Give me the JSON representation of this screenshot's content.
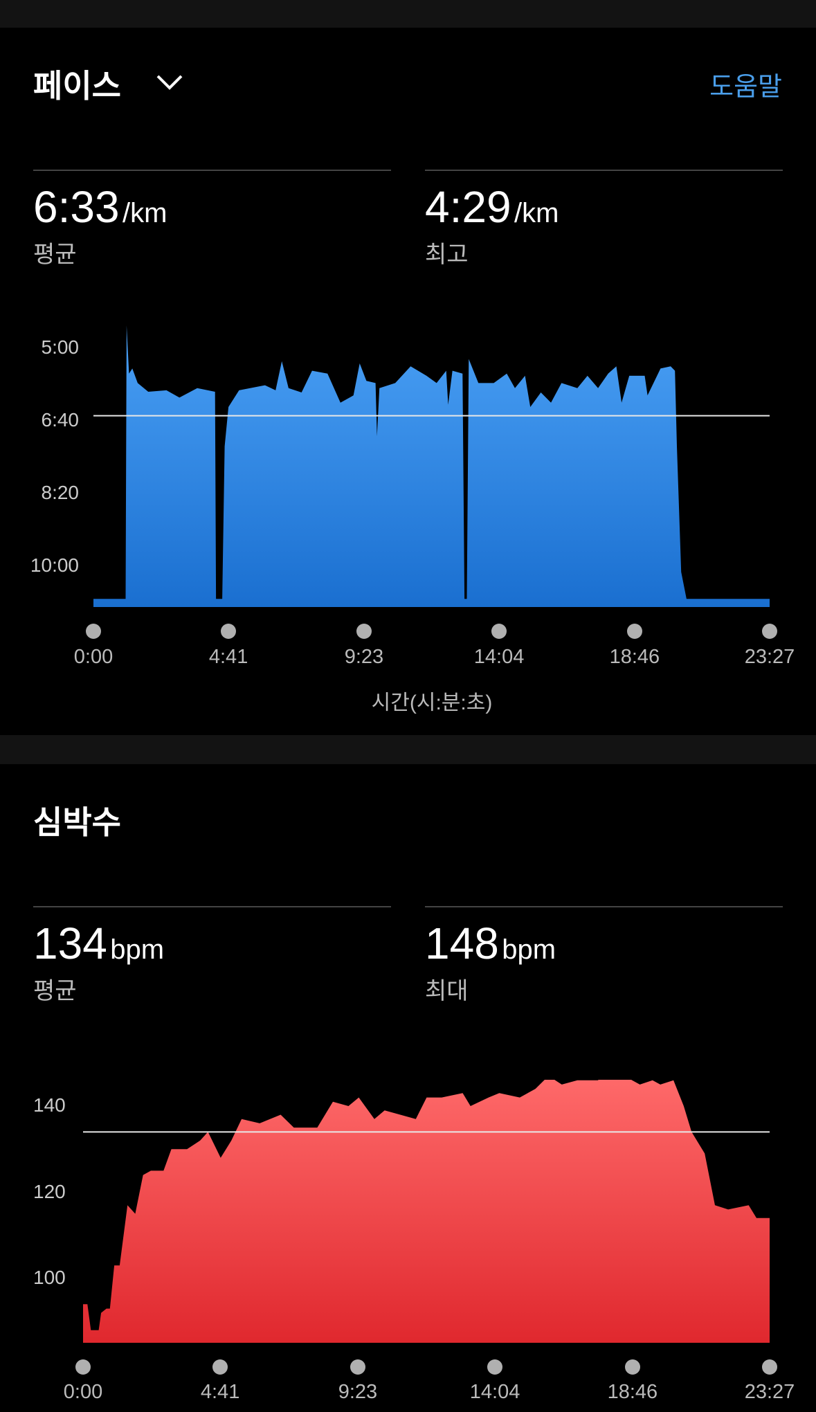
{
  "pace": {
    "title": "페이스",
    "dropdown_icon": "chevron-down-icon",
    "help_label": "도움말",
    "help_color": "#4a9eea",
    "stats": [
      {
        "value": "6:33",
        "unit": "/km",
        "label": "평균"
      },
      {
        "value": "4:29",
        "unit": "/km",
        "label": "최고"
      }
    ]
  },
  "heart_rate": {
    "title": "심박수",
    "stats": [
      {
        "value": "134",
        "unit": "bpm",
        "label": "평균"
      },
      {
        "value": "148",
        "unit": "bpm",
        "label": "최대"
      }
    ]
  },
  "chart_data": [
    {
      "type": "area",
      "x_unit": "seconds",
      "y_unit": "seconds per km",
      "y_inverted": true,
      "xlabel": "시간(시:분:초)",
      "x_tick_labels": [
        "0:00",
        "4:41",
        "9:23",
        "14:04",
        "18:46",
        "23:27"
      ],
      "x_ticks": [
        0,
        281,
        563,
        844,
        1126,
        1407
      ],
      "y_tick_labels": [
        "5:00",
        "6:40",
        "8:20",
        "10:00"
      ],
      "y_ticks": [
        300,
        400,
        500,
        600
      ],
      "xlim": [
        0,
        1407
      ],
      "average": 393,
      "color_top": "#4aa0f5",
      "color_bottom": "#1a6fd0",
      "points": [
        [
          0,
          645
        ],
        [
          67,
          645
        ],
        [
          69,
          269
        ],
        [
          74,
          335
        ],
        [
          81,
          328
        ],
        [
          92,
          348
        ],
        [
          114,
          360
        ],
        [
          152,
          358
        ],
        [
          179,
          368
        ],
        [
          216,
          355
        ],
        [
          253,
          360
        ],
        [
          255,
          645
        ],
        [
          268,
          645
        ],
        [
          273,
          435
        ],
        [
          281,
          381
        ],
        [
          303,
          358
        ],
        [
          357,
          351
        ],
        [
          379,
          358
        ],
        [
          392,
          318
        ],
        [
          406,
          355
        ],
        [
          433,
          361
        ],
        [
          455,
          331
        ],
        [
          487,
          335
        ],
        [
          514,
          375
        ],
        [
          541,
          365
        ],
        [
          554,
          321
        ],
        [
          568,
          345
        ],
        [
          587,
          348
        ],
        [
          590,
          421
        ],
        [
          595,
          355
        ],
        [
          628,
          348
        ],
        [
          660,
          325
        ],
        [
          693,
          338
        ],
        [
          714,
          348
        ],
        [
          734,
          331
        ],
        [
          738,
          378
        ],
        [
          747,
          331
        ],
        [
          768,
          335
        ],
        [
          772,
          645
        ],
        [
          777,
          645
        ],
        [
          781,
          315
        ],
        [
          801,
          348
        ],
        [
          833,
          348
        ],
        [
          860,
          335
        ],
        [
          877,
          355
        ],
        [
          898,
          338
        ],
        [
          909,
          381
        ],
        [
          931,
          361
        ],
        [
          952,
          375
        ],
        [
          974,
          348
        ],
        [
          1007,
          355
        ],
        [
          1028,
          338
        ],
        [
          1050,
          355
        ],
        [
          1071,
          335
        ],
        [
          1088,
          325
        ],
        [
          1099,
          375
        ],
        [
          1115,
          338
        ],
        [
          1147,
          338
        ],
        [
          1153,
          365
        ],
        [
          1180,
          328
        ],
        [
          1201,
          325
        ],
        [
          1210,
          331
        ],
        [
          1214,
          435
        ],
        [
          1223,
          608
        ],
        [
          1234,
          645
        ],
        [
          1407,
          645
        ]
      ]
    },
    {
      "type": "area",
      "x_unit": "seconds",
      "y_unit": "bpm",
      "x_tick_labels": [
        "0:00",
        "4:41",
        "9:23",
        "14:04",
        "18:46",
        "23:27"
      ],
      "x_ticks": [
        0,
        281,
        563,
        844,
        1126,
        1407
      ],
      "y_tick_labels": [
        "140",
        "120",
        "100"
      ],
      "y_ticks": [
        140,
        120,
        100
      ],
      "xlim": [
        0,
        1407
      ],
      "average": 134,
      "color_top": "#ff6b6b",
      "color_bottom": "#e0282e",
      "points": [
        [
          0,
          94
        ],
        [
          9,
          94
        ],
        [
          16,
          88
        ],
        [
          32,
          88
        ],
        [
          37,
          92
        ],
        [
          48,
          93
        ],
        [
          55,
          93
        ],
        [
          64,
          103
        ],
        [
          75,
          103
        ],
        [
          91,
          117
        ],
        [
          107,
          115
        ],
        [
          123,
          124
        ],
        [
          139,
          125
        ],
        [
          165,
          125
        ],
        [
          181,
          130
        ],
        [
          213,
          130
        ],
        [
          240,
          132
        ],
        [
          256,
          134
        ],
        [
          282,
          128
        ],
        [
          304,
          132
        ],
        [
          325,
          137
        ],
        [
          362,
          136
        ],
        [
          405,
          138
        ],
        [
          432,
          135
        ],
        [
          458,
          135
        ],
        [
          480,
          135
        ],
        [
          512,
          141
        ],
        [
          544,
          140
        ],
        [
          565,
          142
        ],
        [
          597,
          137
        ],
        [
          618,
          139
        ],
        [
          650,
          138
        ],
        [
          682,
          137
        ],
        [
          704,
          142
        ],
        [
          735,
          142
        ],
        [
          778,
          143
        ],
        [
          794,
          140
        ],
        [
          831,
          142
        ],
        [
          853,
          143
        ],
        [
          895,
          142
        ],
        [
          927,
          144
        ],
        [
          954,
          147
        ],
        [
          981,
          145
        ],
        [
          1013,
          146
        ],
        [
          1055,
          146
        ],
        [
          1082,
          148
        ],
        [
          1109,
          147
        ],
        [
          1141,
          145
        ],
        [
          1167,
          146
        ],
        [
          1183,
          145
        ],
        [
          1210,
          146
        ],
        [
          1231,
          140
        ],
        [
          1247,
          134
        ],
        [
          1274,
          129
        ],
        [
          1295,
          117
        ],
        [
          1322,
          116
        ],
        [
          1364,
          117
        ],
        [
          1380,
          114
        ],
        [
          1407,
          114
        ]
      ]
    }
  ]
}
